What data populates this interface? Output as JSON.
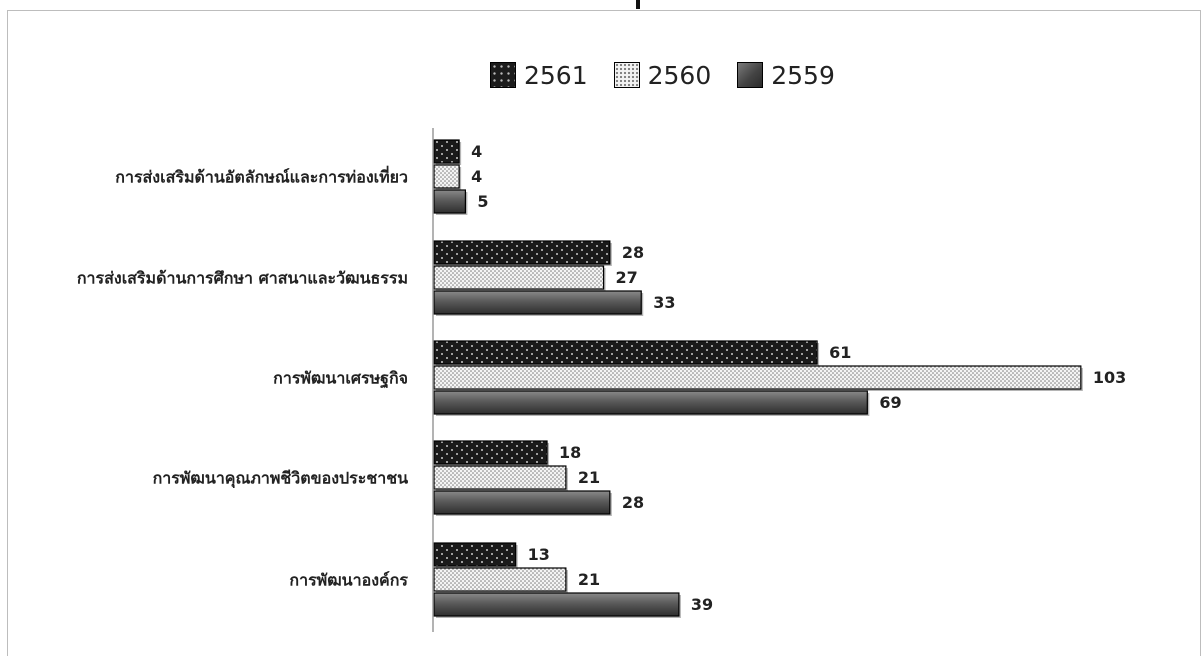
{
  "chart_data": {
    "type": "bar",
    "orientation": "horizontal",
    "categories": [
      "การส่งเสริมด้านอัตลักษณ์และการท่องเที่ยว",
      "การส่งเสริมด้านการศึกษา ศาสนาและวัฒนธรรม",
      "การพัฒนาเศรษฐกิจ",
      "การพัฒนาคุณภาพชีวิตของประชาชน",
      "การพัฒนาองค์กร"
    ],
    "series": [
      {
        "name": "2561",
        "values": [
          4,
          28,
          61,
          18,
          13
        ],
        "pattern": "dark-dots",
        "color": "#1c1c1c"
      },
      {
        "name": "2560",
        "values": [
          4,
          27,
          103,
          21,
          21
        ],
        "pattern": "light-dots",
        "color": "#f2f2f2"
      },
      {
        "name": "2559",
        "values": [
          5,
          33,
          69,
          28,
          39
        ],
        "pattern": "gray-gradient",
        "color": "#555555"
      }
    ],
    "title": "",
    "xlabel": "",
    "ylabel": "",
    "xlim": [
      0,
      105
    ],
    "grid": false,
    "legend_position": "top"
  }
}
